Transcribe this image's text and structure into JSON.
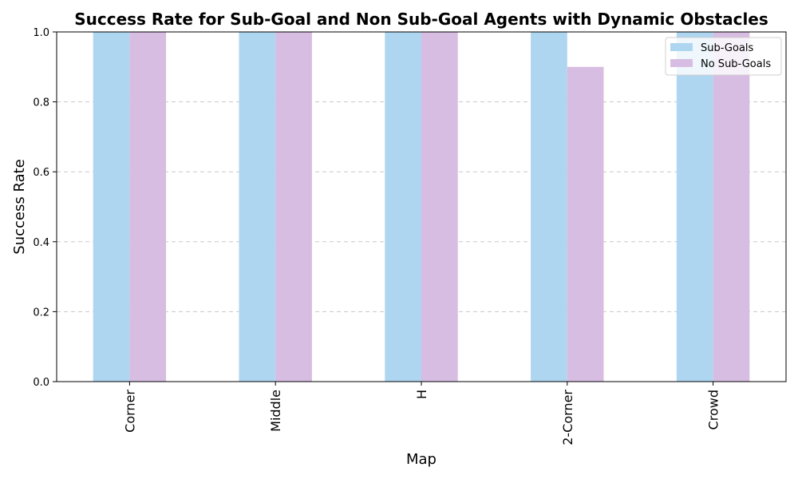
{
  "chart_data": {
    "type": "bar",
    "title": "Success Rate for Sub-Goal and Non Sub-Goal Agents with Dynamic Obstacles",
    "xlabel": "Map",
    "ylabel": "Success Rate",
    "categories": [
      "Corner",
      "Middle",
      "H",
      "2-Corner",
      "Crowd"
    ],
    "series": [
      {
        "name": "Sub-Goals",
        "color": "#aed6f1",
        "values": [
          1.0,
          1.0,
          1.0,
          1.0,
          1.0
        ]
      },
      {
        "name": "No Sub-Goals",
        "color": "#d7bde2",
        "values": [
          1.0,
          1.0,
          1.0,
          0.9,
          1.0
        ]
      }
    ],
    "ylim": [
      0,
      1.0
    ],
    "yticks": [
      "0.0",
      "0.2",
      "0.4",
      "0.6",
      "0.8",
      "1.0"
    ],
    "grid": "y-dashed",
    "legend_position": "top-right",
    "xtick_rotation": "vertical"
  }
}
